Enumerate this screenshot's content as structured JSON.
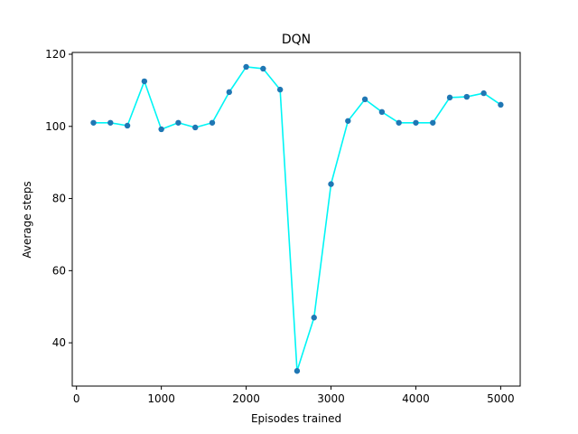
{
  "chart_data": {
    "type": "line",
    "title": "DQN",
    "xlabel": "Episodes trained",
    "ylabel": "Average steps",
    "xlim": [
      -50,
      5230
    ],
    "ylim": [
      28,
      120.5
    ],
    "xticks": [
      0,
      1000,
      2000,
      3000,
      4000,
      5000
    ],
    "yticks": [
      40,
      60,
      80,
      100,
      120
    ],
    "grid": false,
    "line_color": "#00f5f5",
    "marker_color": "#1f77b4",
    "series": [
      {
        "x": [
          200,
          400,
          600,
          800,
          1000,
          1200,
          1400,
          1600,
          1800,
          2000,
          2200,
          2400,
          2600,
          2800,
          3000,
          3200,
          3400,
          3600,
          3800,
          4000,
          4200,
          4400,
          4600,
          4800,
          5000
        ],
        "y": [
          101,
          101,
          100.2,
          112.5,
          99.2,
          101,
          99.7,
          101,
          109.5,
          116.5,
          116,
          110.2,
          32.2,
          47,
          84,
          101.5,
          107.5,
          104,
          101,
          101,
          101,
          108,
          108.2,
          109.2,
          106
        ]
      }
    ]
  }
}
